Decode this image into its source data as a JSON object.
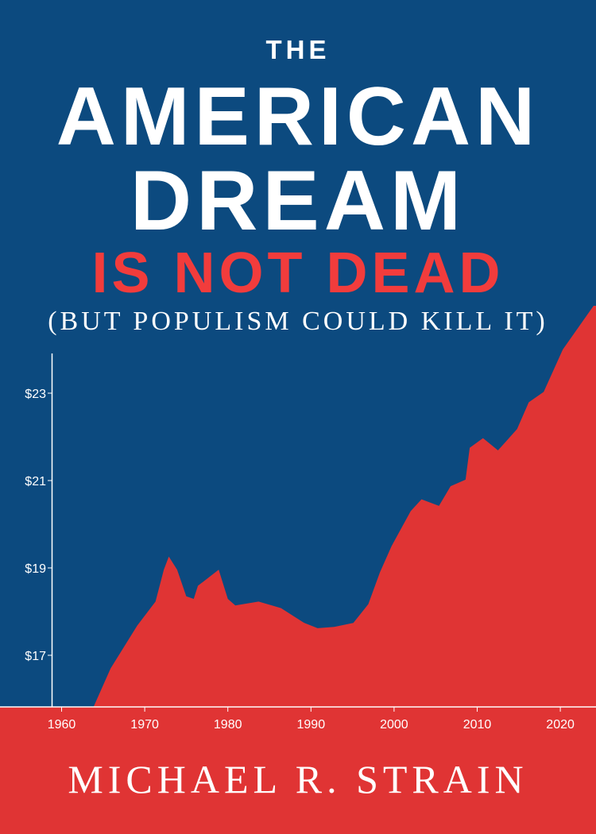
{
  "cover": {
    "title_line1": "THE",
    "title_line2": "AMERICAN",
    "title_line3": "DREAM",
    "title_line4": "IS NOT DEAD",
    "subtitle": "(BUT POPULISM COULD KILL IT)",
    "author": "MICHAEL R. STRAIN",
    "colors": {
      "background_blue": "#0c4a7f",
      "area_red": "#e03434",
      "title_white": "#ffffff",
      "title_red": "#f23c3c"
    }
  },
  "chart_data": {
    "type": "area",
    "title": "",
    "xlabel": "",
    "ylabel": "",
    "x_ticks": [
      "1960",
      "1970",
      "1980",
      "1990",
      "2000",
      "2010",
      "2020"
    ],
    "y_ticks": [
      "$17",
      "$19",
      "$21",
      "$23"
    ],
    "xlim": [
      1959,
      2024
    ],
    "ylim": [
      15.8,
      25
    ],
    "grid": false,
    "x": [
      1963.8,
      1965.9,
      1969.1,
      1971.3,
      1972.3,
      1972.9,
      1973.9,
      1975.0,
      1975.9,
      1976.4,
      1978.9,
      1980.0,
      1980.9,
      1983.7,
      1986.4,
      1989.2,
      1990.8,
      1992.8,
      1995.1,
      1996.9,
      1998.3,
      1999.7,
      2002.0,
      2003.3,
      2005.4,
      2006.8,
      2008.6,
      2009.1,
      2010.7,
      2012.5,
      2014.8,
      2016.2,
      2018.0,
      2020.3,
      2024.0
    ],
    "y": [
      15.8,
      16.7,
      17.68,
      18.23,
      18.96,
      19.26,
      18.96,
      18.35,
      18.29,
      18.59,
      18.96,
      18.29,
      18.14,
      18.23,
      18.08,
      17.74,
      17.62,
      17.65,
      17.74,
      18.17,
      18.9,
      19.5,
      20.3,
      20.57,
      20.42,
      20.87,
      21.02,
      21.75,
      21.97,
      21.69,
      22.18,
      22.79,
      23.03,
      24.0,
      25.0
    ]
  }
}
